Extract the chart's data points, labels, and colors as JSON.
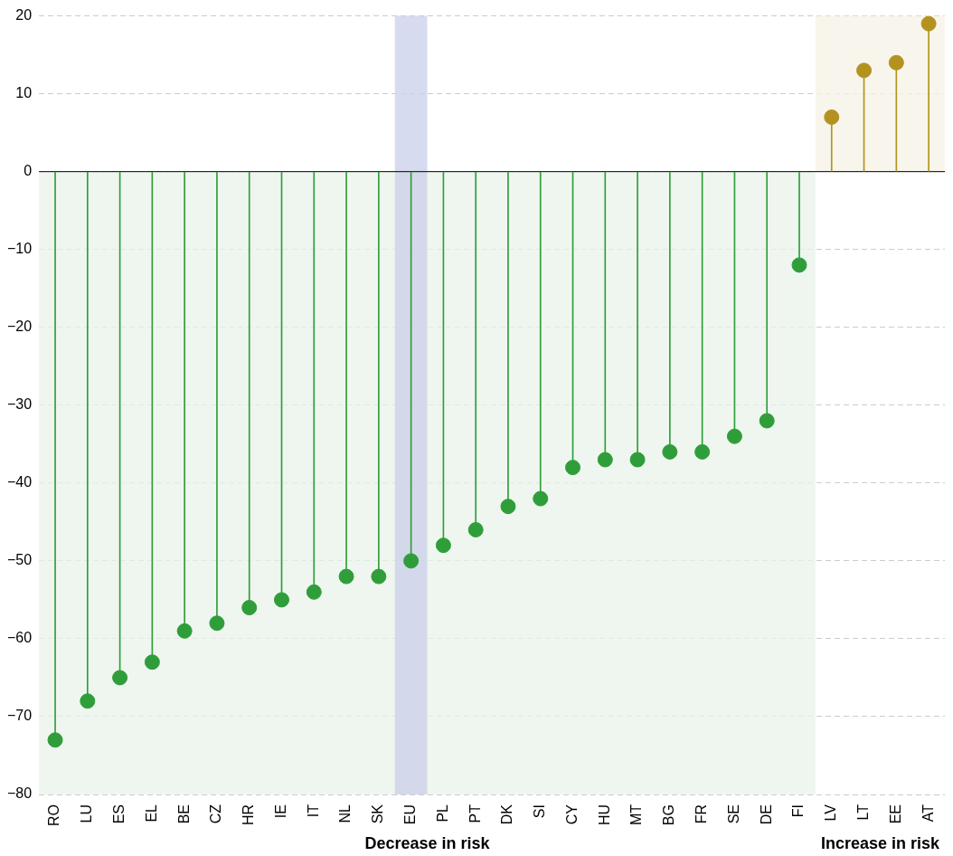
{
  "chart_data": {
    "type": "lollipop",
    "categories": [
      "RO",
      "LU",
      "ES",
      "EL",
      "BE",
      "CZ",
      "HR",
      "IE",
      "IT",
      "NL",
      "SK",
      "EU",
      "PL",
      "PT",
      "DK",
      "SI",
      "CY",
      "HU",
      "MT",
      "BG",
      "FR",
      "SE",
      "DE",
      "FI",
      "LV",
      "LT",
      "EE",
      "AT"
    ],
    "values": [
      -73,
      -68,
      -65,
      -63,
      -59,
      -58,
      -56,
      -55,
      -54,
      -52,
      -52,
      -50,
      -48,
      -46,
      -43,
      -42,
      -38,
      -37,
      -37,
      -36,
      -36,
      -34,
      -32,
      -12,
      7,
      13,
      14,
      19
    ],
    "colors": [
      "#2f9e3a",
      "#2f9e3a",
      "#2f9e3a",
      "#2f9e3a",
      "#2f9e3a",
      "#2f9e3a",
      "#2f9e3a",
      "#2f9e3a",
      "#2f9e3a",
      "#2f9e3a",
      "#2f9e3a",
      "#2f9e3a",
      "#2f9e3a",
      "#2f9e3a",
      "#2f9e3a",
      "#2f9e3a",
      "#2f9e3a",
      "#2f9e3a",
      "#2f9e3a",
      "#2f9e3a",
      "#2f9e3a",
      "#2f9e3a",
      "#2f9e3a",
      "#2f9e3a",
      "#b39220",
      "#b39220",
      "#b39220",
      "#b39220"
    ],
    "ylim": [
      -80,
      20
    ],
    "yticks": [
      -80,
      -70,
      -60,
      -50,
      -40,
      -30,
      -20,
      -10,
      0,
      10,
      20
    ],
    "grid": "y",
    "marker": "circle",
    "legend": false,
    "ref_lines": [
      {
        "axis": "y",
        "value": 0,
        "color": "#000000"
      }
    ],
    "annotations": [
      "Decrease in risk",
      "Increase in risk"
    ],
    "bands": [
      {
        "axis": "x",
        "from": "RO",
        "to": "FI",
        "color": "#eaf3ea"
      },
      {
        "axis": "x",
        "from": "LV",
        "to": "AT",
        "color": "#f6f3e6"
      },
      {
        "axis": "x",
        "from": "EU",
        "to": "EU",
        "color": "#c9cfea"
      }
    ]
  }
}
